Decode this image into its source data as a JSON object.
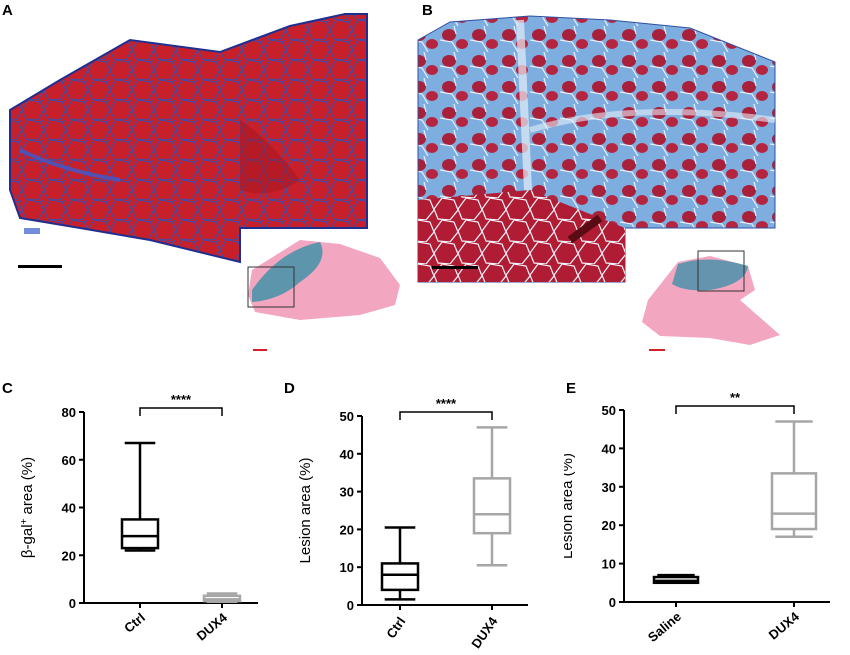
{
  "panels": {
    "a": "A",
    "b": "B",
    "c": "C",
    "d": "D",
    "e": "E"
  },
  "histology": {
    "a": {
      "description_colors": {
        "tissue": "#c8202a",
        "fibrosis": "#3a63b8",
        "section": "#f2a6bf",
        "stain": "#2a8fa6"
      },
      "scale_bar_color": "#000000",
      "inset_scale_bar_color": "#d61f26"
    },
    "b": {
      "description_colors": {
        "tissue": "#b3203a",
        "fibrosis": "#6fa0d8",
        "section": "#f2a6bf",
        "stain": "#2a8fa6"
      },
      "scale_bar_color": "#000000",
      "inset_scale_bar_color": "#d61f26"
    }
  },
  "chart_data": [
    {
      "type": "box",
      "panel": "C",
      "ylabel_main": "β-gal",
      "ylabel_sup": "+",
      "ylabel_rest": " area (%)",
      "ylim": [
        0,
        80
      ],
      "yticks": [
        "0",
        "20",
        "40",
        "60",
        "80"
      ],
      "categories": [
        "Ctrl",
        "DUX4"
      ],
      "colors": [
        "#000000",
        "#a6a6a6"
      ],
      "boxes": [
        {
          "min": 22,
          "q1": 23,
          "median": 28,
          "q3": 35,
          "max": 67
        },
        {
          "min": 0.5,
          "q1": 0.8,
          "median": 1.5,
          "q3": 3,
          "max": 4
        }
      ],
      "significance": "****"
    },
    {
      "type": "box",
      "panel": "D",
      "ylabel_main": "Lesion area (%)",
      "ylabel_sup": "",
      "ylabel_rest": "",
      "ylim": [
        0,
        50
      ],
      "yticks": [
        "0",
        "10",
        "20",
        "30",
        "40",
        "50"
      ],
      "categories": [
        "Ctrl",
        "DUX4"
      ],
      "colors": [
        "#000000",
        "#a6a6a6"
      ],
      "boxes": [
        {
          "min": 1.5,
          "q1": 4,
          "median": 8,
          "q3": 11,
          "max": 20.5
        },
        {
          "min": 10.5,
          "q1": 19,
          "median": 24,
          "q3": 33.5,
          "max": 47
        }
      ],
      "significance": "****"
    },
    {
      "type": "box",
      "panel": "E",
      "ylabel_main": "Lesion area (%)",
      "ylabel_sup": "",
      "ylabel_rest": "",
      "ylim": [
        0,
        50
      ],
      "yticks": [
        "0",
        "10",
        "20",
        "30",
        "40",
        "50"
      ],
      "categories": [
        "Saline",
        "DUX4"
      ],
      "colors": [
        "#000000",
        "#a6a6a6"
      ],
      "boxes": [
        {
          "min": 5,
          "q1": 5,
          "median": 5.5,
          "q3": 6.5,
          "max": 7
        },
        {
          "min": 17,
          "q1": 19,
          "median": 23,
          "q3": 33.5,
          "max": 47
        }
      ],
      "significance": "**"
    }
  ]
}
